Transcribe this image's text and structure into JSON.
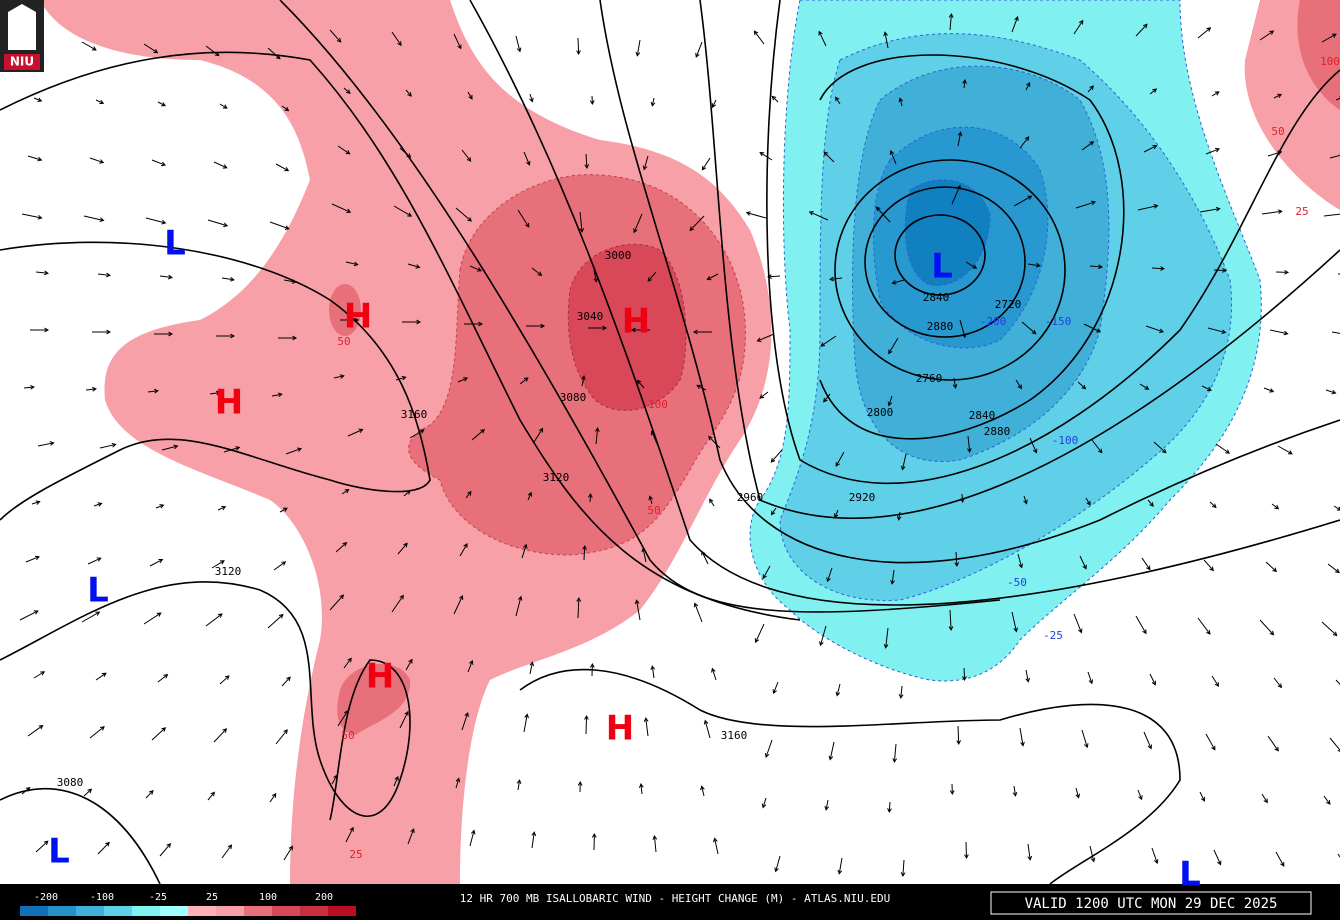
{
  "logo": "NIU",
  "pressure_centers": [
    "L",
    "H",
    "H",
    "H",
    "L",
    "L",
    "H",
    "H",
    "L",
    "L"
  ],
  "contour_labels": [
    3000,
    3040,
    3080,
    3160,
    3120,
    3120,
    3080,
    2960,
    2920,
    2840,
    2880,
    2760,
    2800,
    2840,
    2880,
    2720,
    3160
  ],
  "change_labels": [
    50,
    100,
    50,
    50,
    25,
    100,
    50,
    25,
    -200,
    -150,
    -100,
    -50,
    -25
  ],
  "legend": {
    "values": [
      -200,
      -100,
      -25,
      25,
      100,
      200
    ]
  },
  "footer": {
    "product": "12 HR 700 MB ISALLOBARIC WIND - HEIGHT CHANGE (M) - ATLAS.NIU.EDU",
    "valid": "VALID 1200 UTC MON 29 DEC 2025"
  }
}
